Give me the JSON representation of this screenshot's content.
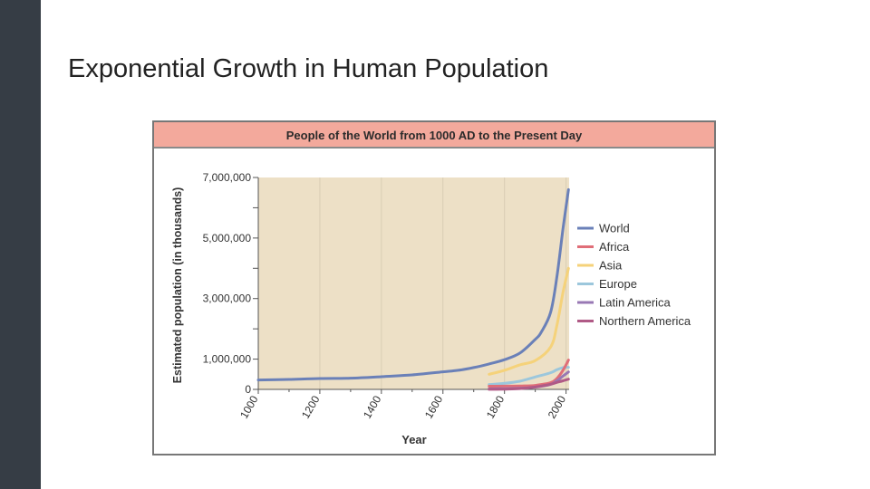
{
  "slide": {
    "title": "Exponential Growth in Human Population",
    "sidebar_color": "#363d45"
  },
  "chart_data": {
    "type": "line",
    "title": "People of the World from 1000 AD to the Present Day",
    "xlabel": "Year",
    "ylabel": "Estimated population (in thousands)",
    "xlim": [
      1000,
      2010
    ],
    "ylim": [
      0,
      7000000
    ],
    "x_ticks": [
      1000,
      1200,
      1400,
      1600,
      1800,
      2000
    ],
    "x_tick_labels": [
      "1000",
      "1200",
      "1400",
      "1600",
      "1800",
      "2000"
    ],
    "y_ticks": [
      0,
      1000000,
      3000000,
      5000000,
      7000000
    ],
    "y_tick_labels": [
      "0",
      "1,000,000",
      "3,000,000",
      "5,000,000",
      "7,000,000"
    ],
    "plot_background": "#ede0c6",
    "legend_position": "right",
    "series": [
      {
        "name": "World",
        "color": "#6a80b8",
        "points": [
          [
            1000,
            310000
          ],
          [
            1100,
            330000
          ],
          [
            1200,
            360000
          ],
          [
            1300,
            370000
          ],
          [
            1400,
            420000
          ],
          [
            1500,
            480000
          ],
          [
            1600,
            580000
          ],
          [
            1650,
            630000
          ],
          [
            1700,
            720000
          ],
          [
            1750,
            840000
          ],
          [
            1800,
            980000
          ],
          [
            1850,
            1200000
          ],
          [
            1900,
            1650000
          ],
          [
            1920,
            1900000
          ],
          [
            1950,
            2550000
          ],
          [
            1970,
            3700000
          ],
          [
            1990,
            5300000
          ],
          [
            2008,
            6600000
          ]
        ]
      },
      {
        "name": "Africa",
        "color": "#e06e78",
        "points": [
          [
            1750,
            106000
          ],
          [
            1800,
            107000
          ],
          [
            1850,
            111000
          ],
          [
            1900,
            133000
          ],
          [
            1950,
            221000
          ],
          [
            1970,
            360000
          ],
          [
            1990,
            630000
          ],
          [
            2008,
            970000
          ]
        ]
      },
      {
        "name": "Asia",
        "color": "#f5d27a",
        "points": [
          [
            1750,
            500000
          ],
          [
            1800,
            630000
          ],
          [
            1850,
            810000
          ],
          [
            1900,
            950000
          ],
          [
            1950,
            1400000
          ],
          [
            1970,
            2100000
          ],
          [
            1990,
            3200000
          ],
          [
            2008,
            4000000
          ]
        ]
      },
      {
        "name": "Europe",
        "color": "#9cc7dc",
        "points": [
          [
            1750,
            160000
          ],
          [
            1800,
            200000
          ],
          [
            1850,
            270000
          ],
          [
            1900,
            410000
          ],
          [
            1950,
            550000
          ],
          [
            1970,
            650000
          ],
          [
            1990,
            720000
          ],
          [
            2008,
            730000
          ]
        ]
      },
      {
        "name": "Latin America",
        "color": "#9878b4",
        "points": [
          [
            1750,
            16000
          ],
          [
            1800,
            24000
          ],
          [
            1850,
            38000
          ],
          [
            1900,
            74000
          ],
          [
            1950,
            167000
          ],
          [
            1970,
            285000
          ],
          [
            1990,
            440000
          ],
          [
            2008,
            577000
          ]
        ]
      },
      {
        "name": "Northern America",
        "color": "#b05a86",
        "points": [
          [
            1750,
            2000
          ],
          [
            1800,
            7000
          ],
          [
            1850,
            26000
          ],
          [
            1900,
            82000
          ],
          [
            1950,
            172000
          ],
          [
            1970,
            231000
          ],
          [
            1990,
            283000
          ],
          [
            2008,
            337000
          ]
        ]
      }
    ]
  }
}
